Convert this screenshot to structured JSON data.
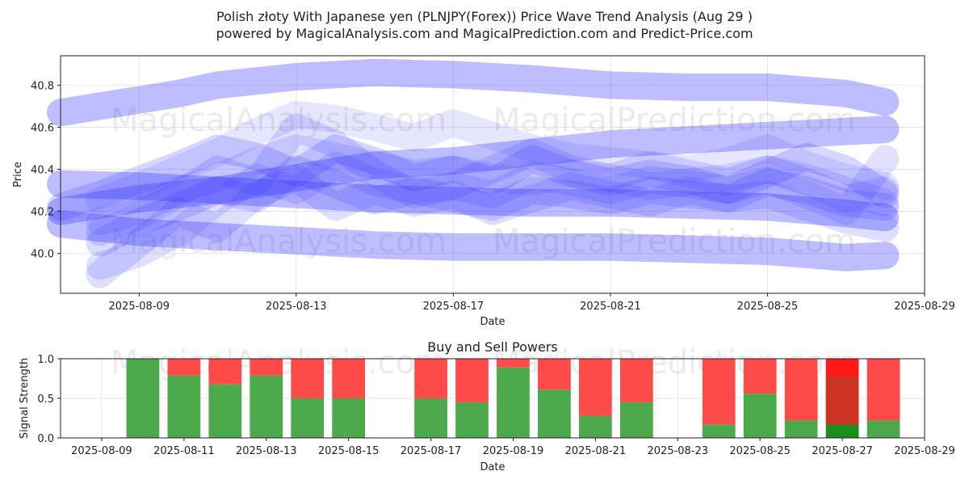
{
  "title_line1": "Polish złoty With Japanese yen (PLNJPY(Forex)) Price Wave Trend Analysis (Aug 29 )",
  "title_line2": "powered by MagicalAnalysis.com and MagicalPrediction.com and Predict-Price.com",
  "watermarks": [
    "MagicalAnalysis.com",
    "MagicalPrediction.com"
  ],
  "chart_data": [
    {
      "type": "line",
      "xlabel": "Date",
      "ylabel": "Price",
      "xlim": [
        "2025-08-07",
        "2025-08-29"
      ],
      "ylim": [
        39.81,
        40.94
      ],
      "x_ticks": [
        "2025-08-09",
        "2025-08-13",
        "2025-08-17",
        "2025-08-21",
        "2025-08-25",
        "2025-08-29"
      ],
      "y_ticks": [
        40.0,
        40.2,
        40.4,
        40.6,
        40.8
      ],
      "grid": true,
      "line_color": "#3333ff",
      "series": [
        {
          "x": [
            "2025-08-07",
            "2025-08-09",
            "2025-08-10",
            "2025-08-11",
            "2025-08-13",
            "2025-08-15",
            "2025-08-17",
            "2025-08-19",
            "2025-08-21",
            "2025-08-23",
            "2025-08-25",
            "2025-08-27",
            "2025-08-28"
          ],
          "values": [
            40.67,
            40.73,
            40.76,
            40.8,
            40.84,
            40.86,
            40.85,
            40.83,
            40.8,
            40.79,
            40.79,
            40.76,
            40.72
          ],
          "opacity": 0.32
        },
        {
          "x": [
            "2025-08-07",
            "2025-08-09",
            "2025-08-11",
            "2025-08-13",
            "2025-08-15",
            "2025-08-17",
            "2025-08-19",
            "2025-08-21",
            "2025-08-23",
            "2025-08-25",
            "2025-08-27",
            "2025-08-28"
          ],
          "values": [
            40.14,
            40.1,
            40.08,
            40.06,
            40.04,
            40.03,
            40.03,
            40.03,
            40.02,
            40.01,
            39.98,
            39.99
          ],
          "opacity": 0.32
        },
        {
          "x": [
            "2025-08-07",
            "2025-08-09",
            "2025-08-11",
            "2025-08-13",
            "2025-08-15",
            "2025-08-17",
            "2025-08-19",
            "2025-08-21",
            "2025-08-23",
            "2025-08-25",
            "2025-08-27",
            "2025-08-28"
          ],
          "values": [
            40.2,
            40.26,
            40.3,
            40.36,
            40.42,
            40.44,
            40.48,
            40.52,
            40.54,
            40.56,
            40.58,
            40.59
          ],
          "opacity": 0.32
        },
        {
          "x": [
            "2025-08-07",
            "2025-08-09",
            "2025-08-11",
            "2025-08-13",
            "2025-08-15",
            "2025-08-17",
            "2025-08-19",
            "2025-08-21",
            "2025-08-23",
            "2025-08-25",
            "2025-08-27",
            "2025-08-28"
          ],
          "values": [
            40.33,
            40.32,
            40.3,
            40.28,
            40.26,
            40.25,
            40.24,
            40.24,
            40.23,
            40.22,
            40.19,
            40.17
          ],
          "opacity": 0.32
        },
        {
          "x": [
            "2025-08-08",
            "2025-08-09",
            "2025-08-10",
            "2025-08-11",
            "2025-08-12",
            "2025-08-13",
            "2025-08-14",
            "2025-08-15",
            "2025-08-16",
            "2025-08-17",
            "2025-08-18",
            "2025-08-19",
            "2025-08-20",
            "2025-08-21",
            "2025-08-22",
            "2025-08-23",
            "2025-08-24",
            "2025-08-25",
            "2025-08-26",
            "2025-08-27",
            "2025-08-28"
          ],
          "values": [
            39.94,
            40.0,
            40.1,
            40.25,
            40.36,
            40.3,
            40.42,
            40.34,
            40.3,
            40.32,
            40.28,
            40.37,
            40.34,
            40.3,
            40.35,
            40.33,
            40.3,
            40.35,
            40.28,
            40.2,
            40.45
          ],
          "opacity": 0.15
        },
        {
          "x": [
            "2025-08-07",
            "2025-08-08",
            "2025-08-09",
            "2025-08-10",
            "2025-08-11",
            "2025-08-12",
            "2025-08-13",
            "2025-08-14",
            "2025-08-15",
            "2025-08-16",
            "2025-08-17",
            "2025-08-18",
            "2025-08-19",
            "2025-08-20",
            "2025-08-21",
            "2025-08-22",
            "2025-08-23",
            "2025-08-24",
            "2025-08-25",
            "2025-08-26",
            "2025-08-27",
            "2025-08-28"
          ],
          "values": [
            40.22,
            40.28,
            40.35,
            40.42,
            40.5,
            40.46,
            40.38,
            40.5,
            40.44,
            40.36,
            40.4,
            40.34,
            40.45,
            40.38,
            40.34,
            40.38,
            40.35,
            40.3,
            40.38,
            40.46,
            40.4,
            40.28
          ],
          "opacity": 0.2
        },
        {
          "x": [
            "2025-08-08",
            "2025-08-09",
            "2025-08-10",
            "2025-08-11",
            "2025-08-12",
            "2025-08-13",
            "2025-08-14",
            "2025-08-15",
            "2025-08-16",
            "2025-08-17",
            "2025-08-18",
            "2025-08-19",
            "2025-08-20",
            "2025-08-21",
            "2025-08-22",
            "2025-08-23",
            "2025-08-24",
            "2025-08-25",
            "2025-08-26",
            "2025-08-27",
            "2025-08-28"
          ],
          "values": [
            40.1,
            40.18,
            40.28,
            40.4,
            40.34,
            40.6,
            40.52,
            40.38,
            40.28,
            40.32,
            40.4,
            40.48,
            40.4,
            40.36,
            40.42,
            40.38,
            40.34,
            40.4,
            40.34,
            40.26,
            40.3
          ],
          "opacity": 0.16
        },
        {
          "x": [
            "2025-08-08",
            "2025-08-09",
            "2025-08-10",
            "2025-08-11",
            "2025-08-12",
            "2025-08-13",
            "2025-08-14",
            "2025-08-15",
            "2025-08-16",
            "2025-08-17",
            "2025-08-18",
            "2025-08-19",
            "2025-08-20",
            "2025-08-21",
            "2025-08-22",
            "2025-08-23",
            "2025-08-24",
            "2025-08-25",
            "2025-08-26",
            "2025-08-27",
            "2025-08-28"
          ],
          "values": [
            40.05,
            40.15,
            40.22,
            40.3,
            40.26,
            40.4,
            40.33,
            40.25,
            40.3,
            40.26,
            40.22,
            40.3,
            40.28,
            40.25,
            40.3,
            40.28,
            40.26,
            40.34,
            40.3,
            40.24,
            40.22
          ],
          "opacity": 0.18
        },
        {
          "x": [
            "2025-08-08",
            "2025-08-09",
            "2025-08-10",
            "2025-08-11",
            "2025-08-12",
            "2025-08-13",
            "2025-08-14",
            "2025-08-15",
            "2025-08-16",
            "2025-08-17",
            "2025-08-18",
            "2025-08-19",
            "2025-08-20",
            "2025-08-21",
            "2025-08-22",
            "2025-08-23",
            "2025-08-24",
            "2025-08-25",
            "2025-08-26",
            "2025-08-27",
            "2025-08-28"
          ],
          "values": [
            39.9,
            40.05,
            40.2,
            40.12,
            40.28,
            40.36,
            40.22,
            40.3,
            40.24,
            40.28,
            40.2,
            40.26,
            40.32,
            40.28,
            40.24,
            40.3,
            40.26,
            40.28,
            40.22,
            40.16,
            40.12
          ],
          "opacity": 0.16
        },
        {
          "x": [
            "2025-08-08",
            "2025-08-09",
            "2025-08-10",
            "2025-08-11",
            "2025-08-12",
            "2025-08-13",
            "2025-08-14",
            "2025-08-15",
            "2025-08-16",
            "2025-08-17",
            "2025-08-18",
            "2025-08-19",
            "2025-08-20",
            "2025-08-21",
            "2025-08-22",
            "2025-08-23",
            "2025-08-24",
            "2025-08-25",
            "2025-08-26",
            "2025-08-27",
            "2025-08-28"
          ],
          "values": [
            40.25,
            40.32,
            40.4,
            40.48,
            40.58,
            40.66,
            40.64,
            40.6,
            40.55,
            40.62,
            40.56,
            40.5,
            40.46,
            40.44,
            40.42,
            40.4,
            40.44,
            40.5,
            40.42,
            40.36,
            40.32
          ],
          "opacity": 0.12
        },
        {
          "x": [
            "2025-08-08",
            "2025-08-09",
            "2025-08-10",
            "2025-08-11",
            "2025-08-12",
            "2025-08-13",
            "2025-08-14",
            "2025-08-15",
            "2025-08-16",
            "2025-08-17",
            "2025-08-18",
            "2025-08-19",
            "2025-08-20",
            "2025-08-21",
            "2025-08-22",
            "2025-08-23",
            "2025-08-24",
            "2025-08-25",
            "2025-08-26",
            "2025-08-27",
            "2025-08-28"
          ],
          "values": [
            40.15,
            40.2,
            40.3,
            40.36,
            40.44,
            40.5,
            40.46,
            40.42,
            40.38,
            40.4,
            40.36,
            40.34,
            40.38,
            40.36,
            40.32,
            40.34,
            40.36,
            40.4,
            40.36,
            40.3,
            40.24
          ],
          "opacity": 0.14
        }
      ]
    },
    {
      "type": "bar",
      "title": "Buy and Sell Powers",
      "xlabel": "",
      "ylabel": "Signal Strength",
      "xlabel_text": "Date",
      "xlim": [
        "2025-08-08",
        "2025-08-29"
      ],
      "ylim": [
        0,
        1.0
      ],
      "x_ticks": [
        "2025-08-09",
        "2025-08-11",
        "2025-08-13",
        "2025-08-15",
        "2025-08-17",
        "2025-08-19",
        "2025-08-21",
        "2025-08-23",
        "2025-08-25",
        "2025-08-27",
        "2025-08-29"
      ],
      "y_ticks": [
        "0.0",
        "0.5",
        "1.0"
      ],
      "grid": true,
      "buy_color": "#4caa4c",
      "sell_color": "#ff4a4a",
      "categories": [
        "2025-08-10",
        "2025-08-11",
        "2025-08-12",
        "2025-08-13",
        "2025-08-14",
        "2025-08-15",
        "2025-08-17",
        "2025-08-18",
        "2025-08-19",
        "2025-08-20",
        "2025-08-21",
        "2025-08-22",
        "2025-08-24",
        "2025-08-25",
        "2025-08-26",
        "2025-08-27",
        "2025-08-28"
      ],
      "series": [
        {
          "name": "Buy",
          "values": [
            1.0,
            0.79,
            0.68,
            0.79,
            0.5,
            0.5,
            0.5,
            0.45,
            0.89,
            0.61,
            0.28,
            0.45,
            0.17,
            0.56,
            0.22,
            0.17,
            0.22
          ]
        },
        {
          "name": "Sell",
          "values": [
            0.0,
            0.21,
            0.32,
            0.21,
            0.5,
            0.5,
            0.5,
            0.55,
            0.11,
            0.39,
            0.72,
            0.55,
            0.83,
            0.44,
            0.78,
            0.83,
            0.78
          ]
        }
      ],
      "highlight": {
        "date": "2025-08-27",
        "buy_color": "#1a8c1a",
        "sell_color": "#ff1a1a",
        "mid_color": "#cc3322",
        "mid_from": 0.17,
        "mid_to": 0.78
      }
    }
  ]
}
